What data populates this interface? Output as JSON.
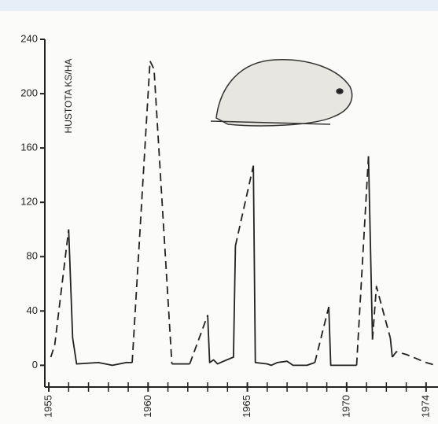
{
  "chart_data": {
    "type": "line",
    "y_label": "HUSTOTA KS/HA",
    "xlim": [
      1954.8,
      1974.6
    ],
    "ylim": [
      -16,
      240
    ],
    "yticks": [
      0,
      40,
      80,
      120,
      160,
      200,
      240
    ],
    "xticks": [
      1955,
      1960,
      1965,
      1970,
      1974
    ],
    "xminor_ticks": [
      1956,
      1957,
      1958,
      1959,
      1961,
      1962,
      1963,
      1964,
      1966,
      1967,
      1968,
      1969,
      1971,
      1972,
      1973
    ],
    "series": [
      {
        "style": "dashed",
        "color": "#222222",
        "x": [
          1955.1,
          1955.3,
          1956.0,
          null,
          1959.2,
          1960.1,
          1960.3,
          1961.2,
          null,
          1962.1,
          1963.0,
          null,
          1964.4,
          1965.3,
          null,
          1968.4,
          1969.1,
          null,
          1970.5,
          1971.1,
          null,
          1971.3,
          1971.5,
          1972.2,
          null,
          1972.3,
          1972.5,
          1973.0,
          1973.5,
          1974.0,
          1974.5
        ],
        "values": [
          6,
          15,
          100,
          null,
          2,
          224,
          218,
          1,
          null,
          1,
          37,
          null,
          88,
          147,
          null,
          2,
          43,
          null,
          0,
          154,
          null,
          19,
          58,
          20,
          null,
          6,
          10,
          8,
          5,
          2,
          0
        ]
      },
      {
        "style": "solid",
        "color": "#222222",
        "x": [
          1956.0,
          1956.2,
          1956.4,
          1957.5,
          1958.2,
          1958.9,
          1959.2,
          null,
          1961.2,
          1962.1,
          null,
          1963.0,
          1963.1,
          1963.3,
          1963.5,
          1963.8,
          1964.3,
          1964.4,
          null,
          1965.3,
          1965.4,
          1966.0,
          1966.2,
          1966.5,
          1967.0,
          1967.3,
          1968.0,
          1968.4,
          null,
          1969.1,
          1969.2,
          1970.5,
          null,
          1971.1,
          1971.3,
          null,
          1972.2,
          1972.3
        ],
        "values": [
          100,
          20,
          1,
          2,
          0,
          2,
          2,
          null,
          1,
          1,
          null,
          37,
          2,
          4,
          1,
          3,
          6,
          88,
          null,
          147,
          2,
          1,
          0,
          2,
          3,
          0,
          0,
          2,
          null,
          43,
          0,
          0,
          null,
          154,
          19,
          null,
          20,
          6
        ]
      }
    ]
  }
}
